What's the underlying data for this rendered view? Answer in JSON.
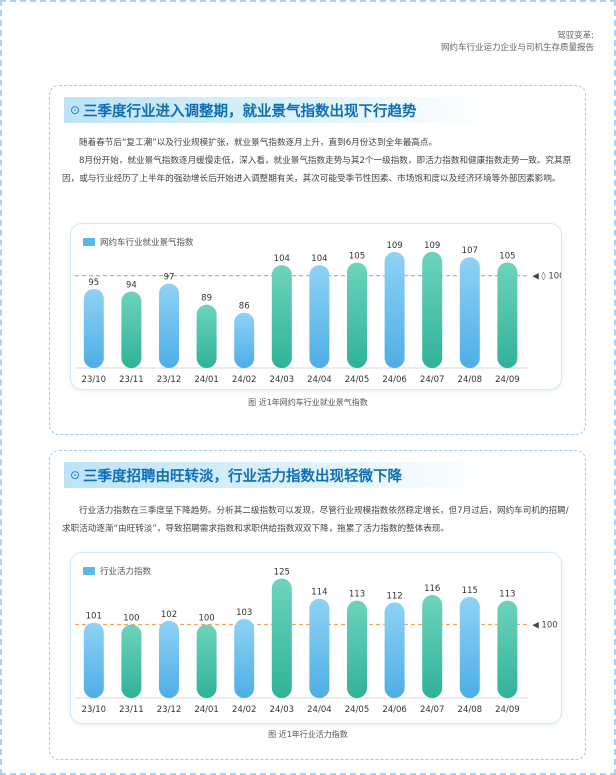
{
  "header": {
    "line1": "驾驭变革:",
    "line2": "网约车行业运力企业与司机生存质量报告"
  },
  "colors": {
    "blue": "#63b9e8",
    "teal": "#42bfa8",
    "ref_line": "#f0a35b",
    "title": "#0f6fb5"
  },
  "section1": {
    "icon": "⊙",
    "title": "三季度行业进入调整期，就业景气指数出现下行趋势",
    "paragraph1": "随着春节后“复工潮”以及行业规模扩张，就业景气指数逐月上升，直到6月份达到全年最高点。",
    "paragraph2": "8月份开始，就业景气指数逐月缓慢走低，深入看，就业景气指数走势与其2个一级指数，即活力指数和健康指数走势一致。究其原因，或与行业经历了上半年的强劲增长后开始进入调整期有关，其次可能受季节性因素、市场饱和度以及经济环境等外部因素影响。",
    "caption": "图 近1年网约车行业就业景气指数"
  },
  "section2": {
    "icon": "⊙",
    "title": "三季度招聘由旺转淡，行业活力指数出现轻微下降",
    "paragraph": "行业活力指数在三季度呈下降趋势。分析其二级指数可以发现，尽管行业规模指数依然稳定增长，但7月过后，网约车司机的招聘/求职活动逐渐“由旺转淡”，导致招聘需求指数和求职供给指数双双下降，拖累了活力指数的整体表现。",
    "caption": "图 近1年行业活力指数"
  },
  "chart_data": [
    {
      "type": "bar",
      "legend": "网约车行业就业景气指数",
      "categories": [
        "23/10",
        "23/11",
        "23/12",
        "24/01",
        "24/02",
        "24/03",
        "24/04",
        "24/05",
        "24/06",
        "24/07",
        "24/08",
        "24/09"
      ],
      "values": [
        95,
        94,
        97,
        89,
        86,
        104,
        104,
        105,
        109,
        109,
        107,
        105
      ],
      "colors": [
        "blue",
        "teal",
        "blue",
        "teal",
        "blue",
        "teal",
        "blue",
        "teal",
        "blue",
        "teal",
        "blue",
        "teal"
      ],
      "reference_line": {
        "value": 100,
        "label": "◀ ◊ 100"
      },
      "ylim": [
        65,
        112
      ]
    },
    {
      "type": "bar",
      "legend": "行业活力指数",
      "categories": [
        "23/10",
        "23/11",
        "23/12",
        "24/01",
        "24/02",
        "24/03",
        "24/04",
        "24/05",
        "24/06",
        "24/07",
        "24/08",
        "24/09"
      ],
      "values": [
        101,
        100,
        102,
        100,
        103,
        125,
        114,
        113,
        112,
        116,
        115,
        113
      ],
      "colors": [
        "blue",
        "teal",
        "blue",
        "teal",
        "blue",
        "teal",
        "blue",
        "teal",
        "blue",
        "teal",
        "blue",
        "teal"
      ],
      "reference_line": {
        "value": 100,
        "label": "◀ 100"
      },
      "ylim": [
        60,
        128
      ]
    }
  ]
}
